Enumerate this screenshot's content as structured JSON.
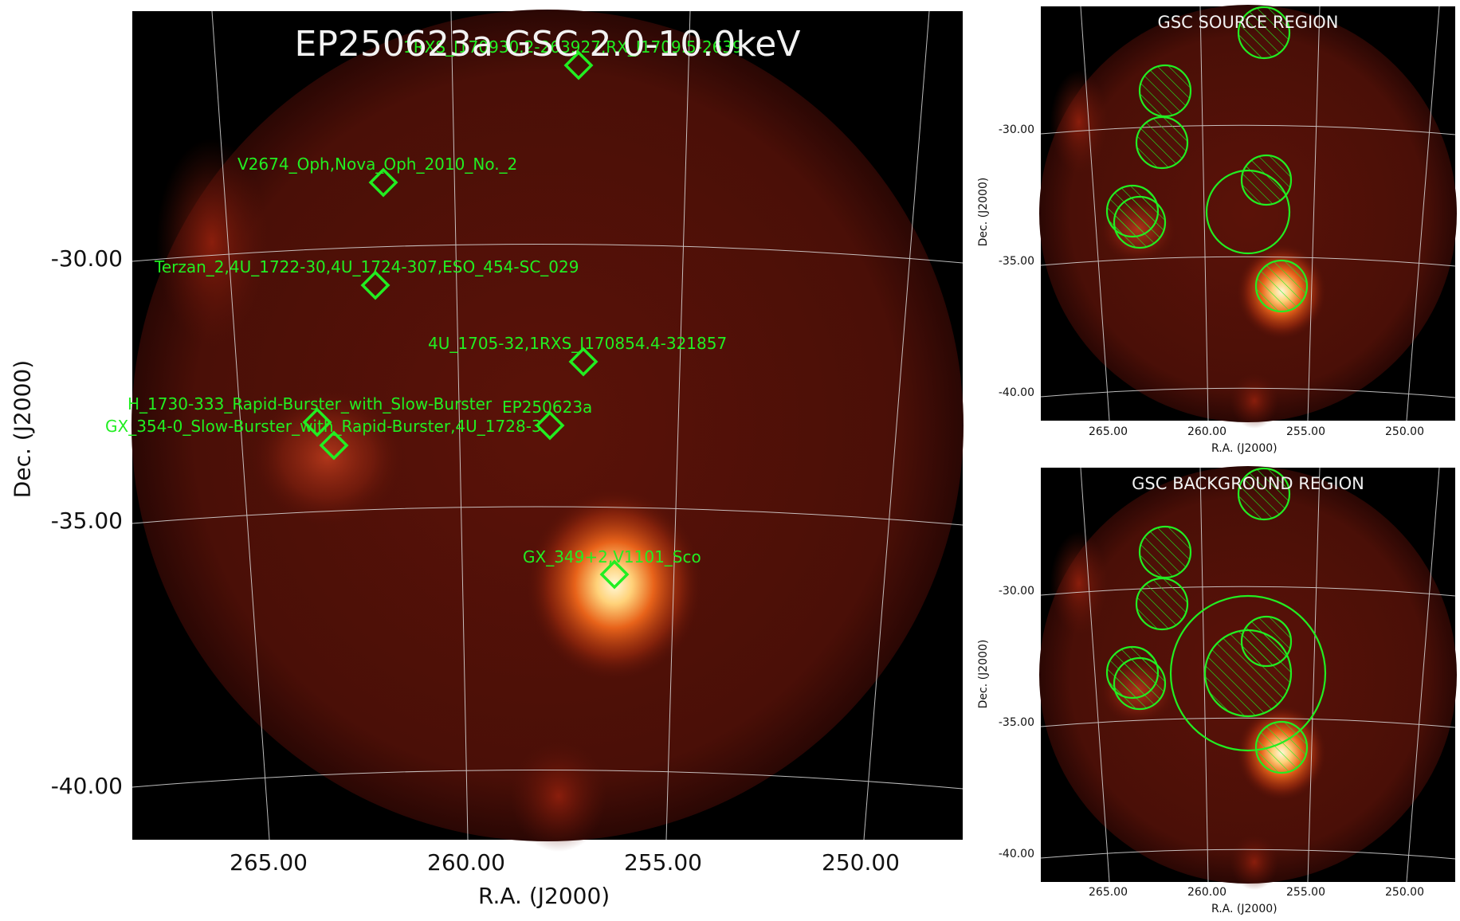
{
  "main": {
    "title": "EP250623a GSC 2.0-10.0keV",
    "xlabel": "R.A. (J2000)",
    "ylabel": "Dec. (J2000)",
    "x_ticks": [
      "265.00",
      "260.00",
      "255.00",
      "250.00"
    ],
    "y_ticks": [
      "-30.00",
      "-35.00",
      "-40.00"
    ],
    "sources": [
      "1RXS_J170930.2-263927,RX_J1709.5-2639",
      "V2674_Oph,Nova_Oph_2010_No._2",
      "Terzan_2,4U_1722-30,4U_1724-307,ESO_454-SC_029",
      "4U_1705-32,1RXS_J170854.4-321857",
      "H_1730-333_Rapid-Burster_with_Slow-Burster",
      "GX_354-0_Slow-Burster_with_Rapid-Burster,4U_1728-3",
      "EP250623a",
      "GX_349+2,V1101_Sco"
    ]
  },
  "source_panel": {
    "title": "GSC SOURCE REGION",
    "xlabel": "R.A. (J2000)",
    "ylabel": "Dec. (J2000)",
    "x_ticks": [
      "265.00",
      "260.00",
      "255.00",
      "250.00"
    ],
    "y_ticks": [
      "-30.00",
      "-35.00",
      "-40.00"
    ]
  },
  "background_panel": {
    "title": "GSC BACKGROUND REGION",
    "xlabel": "R.A. (J2000)",
    "ylabel": "Dec. (J2000)",
    "x_ticks": [
      "265.00",
      "260.00",
      "255.00",
      "250.00"
    ],
    "y_ticks": [
      "-30.00",
      "-35.00",
      "-40.00"
    ]
  },
  "colors": {
    "marker": "#22ee22",
    "grid": "#dddddd",
    "background": "#000000"
  }
}
